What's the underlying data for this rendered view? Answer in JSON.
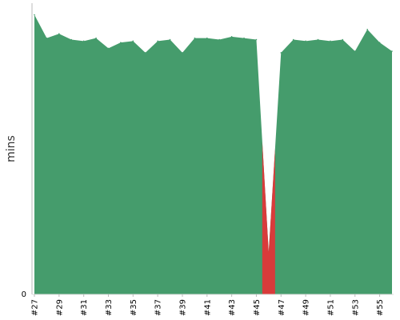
{
  "chart_data": {
    "type": "area",
    "title": "",
    "xlabel": "",
    "ylabel": "mins",
    "ylim": [
      0,
      100
    ],
    "grid": false,
    "legend": "none",
    "x": [
      "#27",
      "#28",
      "#29",
      "#30",
      "#31",
      "#32",
      "#33",
      "#34",
      "#35",
      "#36",
      "#37",
      "#38",
      "#39",
      "#40",
      "#41",
      "#42",
      "#43",
      "#44",
      "#45",
      "#46",
      "#47",
      "#48",
      "#49",
      "#50",
      "#51",
      "#52",
      "#53",
      "#54",
      "#55",
      "#56"
    ],
    "x_tick_labels": [
      "#27",
      "#29",
      "#31",
      "#33",
      "#35",
      "#37",
      "#39",
      "#41",
      "#43",
      "#45",
      "#47",
      "#49",
      "#51",
      "#53",
      "#55"
    ],
    "y_tick_labels": [
      "0"
    ],
    "series": [
      {
        "values": [
          96,
          88,
          89.5,
          87.5,
          87,
          88,
          84.5,
          86.5,
          87,
          83,
          87,
          87.5,
          83,
          88,
          88,
          87.5,
          88.5,
          88,
          87.5,
          14.5,
          83,
          87.5,
          87,
          87.5,
          87,
          87.5,
          83.5,
          91,
          86.5,
          83.5
        ],
        "statuses": [
          "pass",
          "pass",
          "pass",
          "pass",
          "pass",
          "pass",
          "pass",
          "pass",
          "pass",
          "pass",
          "pass",
          "pass",
          "pass",
          "pass",
          "pass",
          "pass",
          "pass",
          "pass",
          "pass",
          "fail",
          "pass",
          "pass",
          "pass",
          "pass",
          "pass",
          "pass",
          "pass",
          "pass",
          "pass",
          "pass"
        ]
      }
    ],
    "colors": {
      "pass": "#459c6c",
      "fail": "#d83b3b",
      "axis": "#bbbbbb",
      "text": "#000000"
    }
  }
}
